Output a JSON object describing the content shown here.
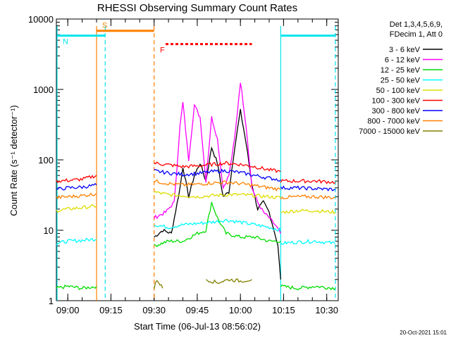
{
  "chart_data": {
    "type": "line",
    "title": "RHESSI Observing Summary Count Rates",
    "xlabel": "Start Time (06-Jul-13 08:56:02)",
    "ylabel": "Count Rate (s⁻¹ detector⁻¹)",
    "yscale": "log",
    "ylim": [
      1,
      10000
    ],
    "xlim": [
      "08:56:02",
      "10:34:00"
    ],
    "x_ticks": [
      "09:00",
      "09:15",
      "09:30",
      "09:45",
      "10:00",
      "10:15",
      "10:30"
    ],
    "y_ticks": [
      "1",
      "10",
      "100",
      "1000",
      "10000"
    ],
    "legend_placement": "outside-right",
    "legend_header": [
      "Det 1,3,4,5,6,9,",
      "FDecim 1, Att 0"
    ],
    "timestamp": "20-Oct-2021 15:01",
    "flags": {
      "S": {
        "label": "S",
        "color": "#ff8000",
        "from": "09:10",
        "to": "09:30",
        "level": 6800
      },
      "N": {
        "label": "N",
        "color": "#00e5ee",
        "from": "08:56",
        "to": "09:13",
        "level": 5800
      },
      "N2": {
        "color": "#00e5ee",
        "from": "10:14",
        "to": "10:33",
        "level": 5800
      },
      "F": {
        "label": "F",
        "color": "#ff0000",
        "from": "09:34",
        "to": "10:04",
        "level": 4400
      }
    },
    "night_markers": [
      {
        "time": "08:56",
        "style": "solid",
        "color": "#00e5ee"
      },
      {
        "time": "09:10",
        "style": "solid",
        "color": "#ff8000"
      },
      {
        "time": "09:13",
        "style": "dashed",
        "color": "#00e5ee"
      },
      {
        "time": "09:30",
        "style": "dashed",
        "color": "#ff8000"
      },
      {
        "time": "10:14",
        "style": "solid",
        "color": "#00e5ee"
      },
      {
        "time": "10:33",
        "style": "dashed",
        "color": "#00e5ee"
      }
    ],
    "series": [
      {
        "name": "3 - 6 keV",
        "color": "#000000",
        "segments": [
          [
            [
              "09:30",
              8
            ],
            [
              "09:33",
              10
            ],
            [
              "09:36",
              9
            ],
            [
              "09:39",
              40
            ],
            [
              "09:40",
              80
            ],
            [
              "09:42",
              30
            ],
            [
              "09:44",
              60
            ],
            [
              "09:46",
              90
            ],
            [
              "09:48",
              50
            ],
            [
              "09:50",
              150
            ],
            [
              "09:52",
              90
            ],
            [
              "09:54",
              30
            ],
            [
              "09:56",
              35
            ],
            [
              "09:58",
              150
            ],
            [
              "10:00",
              500
            ],
            [
              "10:02",
              170
            ],
            [
              "10:04",
              45
            ],
            [
              "10:06",
              20
            ],
            [
              "10:08",
              25
            ],
            [
              "10:10",
              18
            ],
            [
              "10:12",
              9
            ],
            [
              "10:13",
              6
            ],
            [
              "10:14",
              2
            ]
          ]
        ]
      },
      {
        "name": "6 - 12 keV",
        "color": "#ff00ff",
        "segments": [
          [
            [
              "09:30",
              15
            ],
            [
              "09:34",
              18
            ],
            [
              "09:37",
              25
            ],
            [
              "09:39",
              300
            ],
            [
              "09:40",
              650
            ],
            [
              "09:42",
              100
            ],
            [
              "09:44",
              600
            ],
            [
              "09:46",
              400
            ],
            [
              "09:48",
              50
            ],
            [
              "09:50",
              400
            ],
            [
              "09:52",
              200
            ],
            [
              "09:54",
              40
            ],
            [
              "09:56",
              60
            ],
            [
              "09:58",
              200
            ],
            [
              "10:00",
              1300
            ],
            [
              "10:02",
              300
            ],
            [
              "10:04",
              40
            ],
            [
              "10:06",
              25
            ],
            [
              "10:08",
              18
            ],
            [
              "10:10",
              15
            ],
            [
              "10:12",
              12
            ],
            [
              "10:14",
              9
            ]
          ]
        ]
      },
      {
        "name": "12 - 25 keV",
        "color": "#00dd00",
        "segments": [
          [
            [
              "08:56",
              1.5
            ],
            [
              "09:00",
              1.6
            ],
            [
              "09:05",
              1.5
            ],
            [
              "09:10",
              1.6
            ]
          ],
          [
            [
              "09:30",
              6
            ],
            [
              "09:35",
              7
            ],
            [
              "09:40",
              7
            ],
            [
              "09:45",
              9
            ],
            [
              "09:48",
              10
            ],
            [
              "09:50",
              25
            ],
            [
              "09:52",
              15
            ],
            [
              "09:55",
              9
            ],
            [
              "10:00",
              8
            ],
            [
              "10:05",
              8
            ],
            [
              "10:10",
              7
            ],
            [
              "10:14",
              7
            ]
          ],
          [
            [
              "10:14",
              1.6
            ],
            [
              "10:20",
              1.5
            ],
            [
              "10:26",
              1.6
            ],
            [
              "10:33",
              1.5
            ]
          ]
        ]
      },
      {
        "name": "25 - 50 keV",
        "color": "#00ffff",
        "segments": [
          [
            [
              "08:56",
              6.5
            ],
            [
              "09:00",
              7
            ],
            [
              "09:05",
              7.2
            ],
            [
              "09:10",
              7.5
            ]
          ],
          [
            [
              "09:30",
              12
            ],
            [
              "09:35",
              11
            ],
            [
              "09:40",
              12
            ],
            [
              "09:45",
              12.5
            ],
            [
              "09:50",
              13
            ],
            [
              "09:55",
              14
            ],
            [
              "10:00",
              13
            ],
            [
              "10:05",
              12
            ],
            [
              "10:10",
              11
            ],
            [
              "10:14",
              10
            ]
          ],
          [
            [
              "10:14",
              6.5
            ],
            [
              "10:20",
              6.8
            ],
            [
              "10:26",
              7
            ],
            [
              "10:33",
              6.5
            ]
          ]
        ]
      },
      {
        "name": "50 - 100 keV",
        "color": "#dddd00",
        "segments": [
          [
            [
              "08:56",
              19
            ],
            [
              "09:00",
              20
            ],
            [
              "09:05",
              21
            ],
            [
              "09:10",
              22
            ]
          ],
          [
            [
              "09:30",
              35
            ],
            [
              "09:35",
              32
            ],
            [
              "09:40",
              31
            ],
            [
              "09:45",
              30
            ],
            [
              "09:50",
              31
            ],
            [
              "09:55",
              32
            ],
            [
              "10:00",
              32
            ],
            [
              "10:05",
              31
            ],
            [
              "10:10",
              30
            ],
            [
              "10:14",
              29
            ]
          ],
          [
            [
              "10:14",
              18
            ],
            [
              "10:20",
              19
            ],
            [
              "10:26",
              19
            ],
            [
              "10:33",
              18
            ]
          ]
        ]
      },
      {
        "name": "100 - 300 keV",
        "color": "#ff0000",
        "segments": [
          [
            [
              "08:56",
              50
            ],
            [
              "09:00",
              51
            ],
            [
              "09:05",
              53
            ],
            [
              "09:10",
              60
            ]
          ],
          [
            [
              "09:30",
              90
            ],
            [
              "09:35",
              85
            ],
            [
              "09:40",
              80
            ],
            [
              "09:45",
              82
            ],
            [
              "09:50",
              86
            ],
            [
              "09:55",
              90
            ],
            [
              "10:00",
              86
            ],
            [
              "10:05",
              80
            ],
            [
              "10:10",
              72
            ],
            [
              "10:14",
              68
            ]
          ],
          [
            [
              "10:14",
              50
            ],
            [
              "10:20",
              50
            ],
            [
              "10:26",
              50
            ],
            [
              "10:33",
              48
            ]
          ]
        ]
      },
      {
        "name": "300 - 800 keV",
        "color": "#0000ff",
        "segments": [
          [
            [
              "08:56",
              38
            ],
            [
              "09:00",
              40
            ],
            [
              "09:05",
              41
            ],
            [
              "09:10",
              44
            ]
          ],
          [
            [
              "09:30",
              70
            ],
            [
              "09:35",
              65
            ],
            [
              "09:40",
              62
            ],
            [
              "09:45",
              64
            ],
            [
              "09:50",
              68
            ],
            [
              "09:55",
              70
            ],
            [
              "10:00",
              66
            ],
            [
              "10:05",
              60
            ],
            [
              "10:10",
              55
            ],
            [
              "10:14",
              52
            ]
          ],
          [
            [
              "10:14",
              40
            ],
            [
              "10:20",
              40
            ],
            [
              "10:26",
              39
            ],
            [
              "10:33",
              38
            ]
          ]
        ]
      },
      {
        "name": "800 - 7000 keV",
        "color": "#ff8000",
        "segments": [
          [
            [
              "08:56",
              29
            ],
            [
              "09:00",
              30
            ],
            [
              "09:05",
              31
            ],
            [
              "09:10",
              33
            ]
          ],
          [
            [
              "09:30",
              50
            ],
            [
              "09:35",
              46
            ],
            [
              "09:40",
              44
            ],
            [
              "09:45",
              45
            ],
            [
              "09:50",
              47
            ],
            [
              "09:55",
              48
            ],
            [
              "10:00",
              46
            ],
            [
              "10:05",
              43
            ],
            [
              "10:10",
              40
            ],
            [
              "10:14",
              38
            ]
          ],
          [
            [
              "10:14",
              29
            ],
            [
              "10:20",
              30
            ],
            [
              "10:26",
              30
            ],
            [
              "10:33",
              29
            ]
          ]
        ]
      },
      {
        "name": "7000 - 15000 keV",
        "color": "#808000",
        "segments": [
          [
            [
              "09:30",
              1.5
            ],
            [
              "09:31",
              2
            ],
            [
              "09:33",
              1.5
            ]
          ],
          [
            [
              "09:48",
              2
            ],
            [
              "09:52",
              1.8
            ],
            [
              "09:56",
              2
            ],
            [
              "10:00",
              1.9
            ],
            [
              "10:04",
              2
            ]
          ]
        ]
      }
    ]
  }
}
